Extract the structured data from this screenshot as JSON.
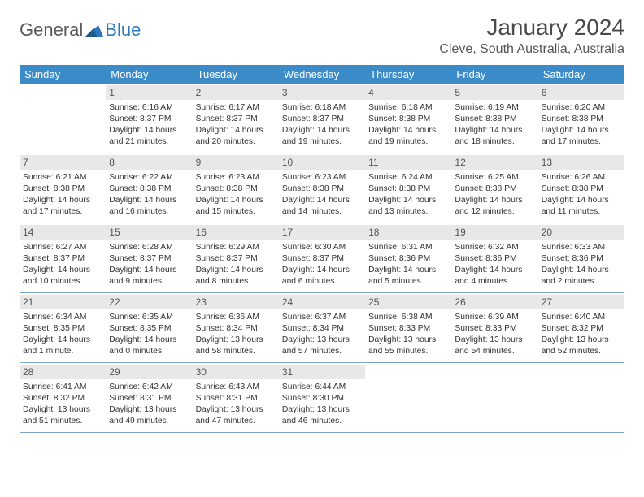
{
  "brand": {
    "general": "General",
    "blue": "Blue"
  },
  "title": "January 2024",
  "location": "Cleve, South Australia, Australia",
  "colors": {
    "header_bg": "#3b8bc9",
    "daynum_bg": "#e8e8e8",
    "row_border": "#7aa6c9",
    "logo_blue": "#2f77bb"
  },
  "daysOfWeek": [
    "Sunday",
    "Monday",
    "Tuesday",
    "Wednesday",
    "Thursday",
    "Friday",
    "Saturday"
  ],
  "weeks": [
    [
      {
        "n": "",
        "sr": "",
        "ss": "",
        "dl": ""
      },
      {
        "n": "1",
        "sr": "Sunrise: 6:16 AM",
        "ss": "Sunset: 8:37 PM",
        "dl": "Daylight: 14 hours and 21 minutes."
      },
      {
        "n": "2",
        "sr": "Sunrise: 6:17 AM",
        "ss": "Sunset: 8:37 PM",
        "dl": "Daylight: 14 hours and 20 minutes."
      },
      {
        "n": "3",
        "sr": "Sunrise: 6:18 AM",
        "ss": "Sunset: 8:37 PM",
        "dl": "Daylight: 14 hours and 19 minutes."
      },
      {
        "n": "4",
        "sr": "Sunrise: 6:18 AM",
        "ss": "Sunset: 8:38 PM",
        "dl": "Daylight: 14 hours and 19 minutes."
      },
      {
        "n": "5",
        "sr": "Sunrise: 6:19 AM",
        "ss": "Sunset: 8:38 PM",
        "dl": "Daylight: 14 hours and 18 minutes."
      },
      {
        "n": "6",
        "sr": "Sunrise: 6:20 AM",
        "ss": "Sunset: 8:38 PM",
        "dl": "Daylight: 14 hours and 17 minutes."
      }
    ],
    [
      {
        "n": "7",
        "sr": "Sunrise: 6:21 AM",
        "ss": "Sunset: 8:38 PM",
        "dl": "Daylight: 14 hours and 17 minutes."
      },
      {
        "n": "8",
        "sr": "Sunrise: 6:22 AM",
        "ss": "Sunset: 8:38 PM",
        "dl": "Daylight: 14 hours and 16 minutes."
      },
      {
        "n": "9",
        "sr": "Sunrise: 6:23 AM",
        "ss": "Sunset: 8:38 PM",
        "dl": "Daylight: 14 hours and 15 minutes."
      },
      {
        "n": "10",
        "sr": "Sunrise: 6:23 AM",
        "ss": "Sunset: 8:38 PM",
        "dl": "Daylight: 14 hours and 14 minutes."
      },
      {
        "n": "11",
        "sr": "Sunrise: 6:24 AM",
        "ss": "Sunset: 8:38 PM",
        "dl": "Daylight: 14 hours and 13 minutes."
      },
      {
        "n": "12",
        "sr": "Sunrise: 6:25 AM",
        "ss": "Sunset: 8:38 PM",
        "dl": "Daylight: 14 hours and 12 minutes."
      },
      {
        "n": "13",
        "sr": "Sunrise: 6:26 AM",
        "ss": "Sunset: 8:38 PM",
        "dl": "Daylight: 14 hours and 11 minutes."
      }
    ],
    [
      {
        "n": "14",
        "sr": "Sunrise: 6:27 AM",
        "ss": "Sunset: 8:37 PM",
        "dl": "Daylight: 14 hours and 10 minutes."
      },
      {
        "n": "15",
        "sr": "Sunrise: 6:28 AM",
        "ss": "Sunset: 8:37 PM",
        "dl": "Daylight: 14 hours and 9 minutes."
      },
      {
        "n": "16",
        "sr": "Sunrise: 6:29 AM",
        "ss": "Sunset: 8:37 PM",
        "dl": "Daylight: 14 hours and 8 minutes."
      },
      {
        "n": "17",
        "sr": "Sunrise: 6:30 AM",
        "ss": "Sunset: 8:37 PM",
        "dl": "Daylight: 14 hours and 6 minutes."
      },
      {
        "n": "18",
        "sr": "Sunrise: 6:31 AM",
        "ss": "Sunset: 8:36 PM",
        "dl": "Daylight: 14 hours and 5 minutes."
      },
      {
        "n": "19",
        "sr": "Sunrise: 6:32 AM",
        "ss": "Sunset: 8:36 PM",
        "dl": "Daylight: 14 hours and 4 minutes."
      },
      {
        "n": "20",
        "sr": "Sunrise: 6:33 AM",
        "ss": "Sunset: 8:36 PM",
        "dl": "Daylight: 14 hours and 2 minutes."
      }
    ],
    [
      {
        "n": "21",
        "sr": "Sunrise: 6:34 AM",
        "ss": "Sunset: 8:35 PM",
        "dl": "Daylight: 14 hours and 1 minute."
      },
      {
        "n": "22",
        "sr": "Sunrise: 6:35 AM",
        "ss": "Sunset: 8:35 PM",
        "dl": "Daylight: 14 hours and 0 minutes."
      },
      {
        "n": "23",
        "sr": "Sunrise: 6:36 AM",
        "ss": "Sunset: 8:34 PM",
        "dl": "Daylight: 13 hours and 58 minutes."
      },
      {
        "n": "24",
        "sr": "Sunrise: 6:37 AM",
        "ss": "Sunset: 8:34 PM",
        "dl": "Daylight: 13 hours and 57 minutes."
      },
      {
        "n": "25",
        "sr": "Sunrise: 6:38 AM",
        "ss": "Sunset: 8:33 PM",
        "dl": "Daylight: 13 hours and 55 minutes."
      },
      {
        "n": "26",
        "sr": "Sunrise: 6:39 AM",
        "ss": "Sunset: 8:33 PM",
        "dl": "Daylight: 13 hours and 54 minutes."
      },
      {
        "n": "27",
        "sr": "Sunrise: 6:40 AM",
        "ss": "Sunset: 8:32 PM",
        "dl": "Daylight: 13 hours and 52 minutes."
      }
    ],
    [
      {
        "n": "28",
        "sr": "Sunrise: 6:41 AM",
        "ss": "Sunset: 8:32 PM",
        "dl": "Daylight: 13 hours and 51 minutes."
      },
      {
        "n": "29",
        "sr": "Sunrise: 6:42 AM",
        "ss": "Sunset: 8:31 PM",
        "dl": "Daylight: 13 hours and 49 minutes."
      },
      {
        "n": "30",
        "sr": "Sunrise: 6:43 AM",
        "ss": "Sunset: 8:31 PM",
        "dl": "Daylight: 13 hours and 47 minutes."
      },
      {
        "n": "31",
        "sr": "Sunrise: 6:44 AM",
        "ss": "Sunset: 8:30 PM",
        "dl": "Daylight: 13 hours and 46 minutes."
      },
      {
        "n": "",
        "sr": "",
        "ss": "",
        "dl": ""
      },
      {
        "n": "",
        "sr": "",
        "ss": "",
        "dl": ""
      },
      {
        "n": "",
        "sr": "",
        "ss": "",
        "dl": ""
      }
    ]
  ]
}
